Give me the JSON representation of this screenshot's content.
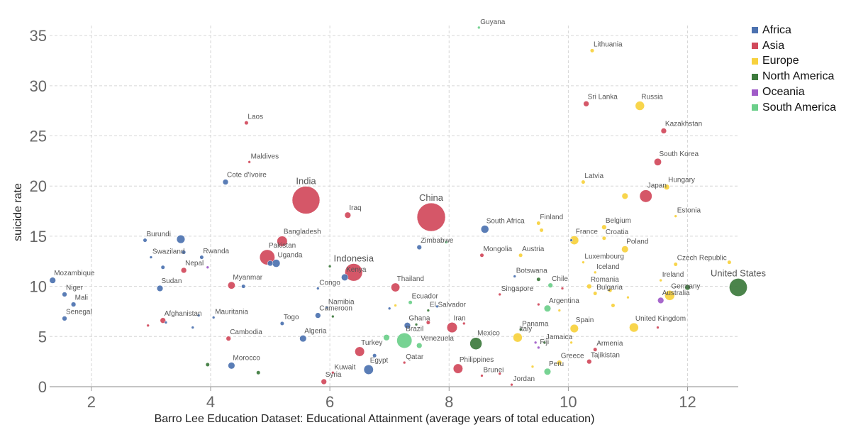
{
  "chart_data": {
    "type": "scatter",
    "title": "",
    "xlabel": "Barro Lee Education Dataset: Educational Attainment (average years of total education)",
    "ylabel": "suicide rate",
    "xlim": [
      1.3,
      12.85
    ],
    "ylim": [
      0,
      36
    ],
    "xticks": [
      "2",
      "4",
      "6",
      "8",
      "10",
      "12"
    ],
    "yticks": [
      "0",
      "5",
      "10",
      "15",
      "20",
      "25",
      "30",
      "35"
    ],
    "grid": true,
    "legend_position": "right",
    "size_encoding": "population",
    "regions": [
      {
        "name": "Africa",
        "color": "#4c72b0"
      },
      {
        "name": "Asia",
        "color": "#d1495b"
      },
      {
        "name": "Europe",
        "color": "#f7d13d"
      },
      {
        "name": "North America",
        "color": "#3c7a3c"
      },
      {
        "name": "Oceania",
        "color": "#a05bc8"
      },
      {
        "name": "South America",
        "color": "#6bcf8a"
      }
    ],
    "points": [
      {
        "label": "Guyana",
        "x": 8.5,
        "y": 35.8,
        "region": "South America",
        "size": 1
      },
      {
        "label": "Lithuania",
        "x": 10.4,
        "y": 33.5,
        "region": "Europe",
        "size": 2
      },
      {
        "label": "Sri Lanka",
        "x": 10.3,
        "y": 28.2,
        "region": "Asia",
        "size": 4
      },
      {
        "label": "Russia",
        "x": 11.2,
        "y": 28.0,
        "region": "Europe",
        "size": 11
      },
      {
        "label": "Laos",
        "x": 4.6,
        "y": 26.3,
        "region": "Asia",
        "size": 2
      },
      {
        "label": "Kazakhstan",
        "x": 11.6,
        "y": 25.5,
        "region": "Asia",
        "size": 4
      },
      {
        "label": "Maldives",
        "x": 4.65,
        "y": 22.4,
        "region": "Asia",
        "size": 1
      },
      {
        "label": "South Korea",
        "x": 11.5,
        "y": 22.4,
        "region": "Asia",
        "size": 7
      },
      {
        "label": "Cote d'Ivoire",
        "x": 4.25,
        "y": 20.4,
        "region": "Africa",
        "size": 4
      },
      {
        "label": "Latvia",
        "x": 10.25,
        "y": 20.4,
        "region": "Europe",
        "size": 2
      },
      {
        "label": "Hungary",
        "x": 11.65,
        "y": 19.9,
        "region": "Europe",
        "size": 4
      },
      {
        "label": "India",
        "x": 5.6,
        "y": 18.6,
        "region": "Asia",
        "size": 100
      },
      {
        "label": "Japan",
        "x": 11.3,
        "y": 19.0,
        "region": "Asia",
        "size": 20
      },
      {
        "label": "",
        "x": 10.95,
        "y": 19.0,
        "region": "Europe",
        "size": 5
      },
      {
        "label": "Iraq",
        "x": 6.3,
        "y": 17.1,
        "region": "Asia",
        "size": 5
      },
      {
        "label": "China",
        "x": 7.7,
        "y": 16.9,
        "region": "Asia",
        "size": 105
      },
      {
        "label": "Estonia",
        "x": 11.8,
        "y": 17.0,
        "region": "Europe",
        "size": 1
      },
      {
        "label": "Finland",
        "x": 9.5,
        "y": 16.3,
        "region": "Europe",
        "size": 2
      },
      {
        "label": "South Africa",
        "x": 8.6,
        "y": 15.7,
        "region": "Africa",
        "size": 8
      },
      {
        "label": "Belgium",
        "x": 10.6,
        "y": 15.9,
        "region": "Europe",
        "size": 3
      },
      {
        "label": "",
        "x": 9.55,
        "y": 15.6,
        "region": "Europe",
        "size": 2
      },
      {
        "label": "Burundi",
        "x": 2.9,
        "y": 14.6,
        "region": "Africa",
        "size": 2
      },
      {
        "label": "",
        "x": 3.5,
        "y": 14.7,
        "region": "Africa",
        "size": 9
      },
      {
        "label": "Bangladesh",
        "x": 5.2,
        "y": 14.5,
        "region": "Asia",
        "size": 14
      },
      {
        "label": "Croatia",
        "x": 10.6,
        "y": 14.8,
        "region": "Europe",
        "size": 2
      },
      {
        "label": "France",
        "x": 10.1,
        "y": 14.6,
        "region": "Europe",
        "size": 10
      },
      {
        "label": "",
        "x": 10.05,
        "y": 14.6,
        "region": "Africa",
        "size": 1
      },
      {
        "label": "Zimbabwe",
        "x": 7.5,
        "y": 13.9,
        "region": "Africa",
        "size": 3
      },
      {
        "label": "",
        "x": 7.95,
        "y": 14.4,
        "region": "South America",
        "size": 1
      },
      {
        "label": "Poland",
        "x": 10.95,
        "y": 13.7,
        "region": "Europe",
        "size": 6
      },
      {
        "label": "Swaziland",
        "x": 3.0,
        "y": 12.9,
        "region": "Africa",
        "size": 1
      },
      {
        "label": "",
        "x": 3.55,
        "y": 13.4,
        "region": "Africa",
        "size": 2
      },
      {
        "label": "Rwanda",
        "x": 3.85,
        "y": 12.9,
        "region": "Africa",
        "size": 2
      },
      {
        "label": "Pakistan",
        "x": 4.95,
        "y": 12.9,
        "region": "Asia",
        "size": 30
      },
      {
        "label": "Uganda",
        "x": 5.1,
        "y": 12.3,
        "region": "Africa",
        "size": 8
      },
      {
        "label": "",
        "x": 5.0,
        "y": 12.3,
        "region": "Africa",
        "size": 4
      },
      {
        "label": "Mongolia",
        "x": 8.55,
        "y": 13.1,
        "region": "Asia",
        "size": 2
      },
      {
        "label": "Austria",
        "x": 9.2,
        "y": 13.1,
        "region": "Europe",
        "size": 2
      },
      {
        "label": "Luxembourg",
        "x": 10.25,
        "y": 12.4,
        "region": "Europe",
        "size": 1
      },
      {
        "label": "Czech Republic",
        "x": 11.8,
        "y": 12.2,
        "region": "Europe",
        "size": 2
      },
      {
        "label": "",
        "x": 12.7,
        "y": 12.4,
        "region": "Europe",
        "size": 2
      },
      {
        "label": "Nepal",
        "x": 3.55,
        "y": 11.6,
        "region": "Asia",
        "size": 4
      },
      {
        "label": "",
        "x": 3.2,
        "y": 11.9,
        "region": "Africa",
        "size": 2
      },
      {
        "label": "",
        "x": 3.95,
        "y": 11.9,
        "region": "Oceania",
        "size": 1
      },
      {
        "label": "Indonesia",
        "x": 6.4,
        "y": 11.4,
        "region": "Asia",
        "size": 40
      },
      {
        "label": "",
        "x": 6.0,
        "y": 12.0,
        "region": "North America",
        "size": 1
      },
      {
        "label": "Kenya",
        "x": 6.25,
        "y": 10.9,
        "region": "Africa",
        "size": 6
      },
      {
        "label": "Botswana",
        "x": 9.1,
        "y": 11.0,
        "region": "Africa",
        "size": 1
      },
      {
        "label": "Iceland",
        "x": 10.45,
        "y": 11.4,
        "region": "Europe",
        "size": 1
      },
      {
        "label": "Mozambique",
        "x": 1.35,
        "y": 10.6,
        "region": "Africa",
        "size": 5
      },
      {
        "label": "Myanmar",
        "x": 4.35,
        "y": 10.1,
        "region": "Asia",
        "size": 7
      },
      {
        "label": "",
        "x": 4.55,
        "y": 10.0,
        "region": "Africa",
        "size": 2
      },
      {
        "label": "Congo",
        "x": 5.8,
        "y": 9.8,
        "region": "Africa",
        "size": 1
      },
      {
        "label": "Thailand",
        "x": 7.1,
        "y": 9.9,
        "region": "Asia",
        "size": 10
      },
      {
        "label": "Chile",
        "x": 9.7,
        "y": 10.1,
        "region": "South America",
        "size": 3
      },
      {
        "label": "",
        "x": 9.5,
        "y": 10.7,
        "region": "North America",
        "size": 2
      },
      {
        "label": "",
        "x": 9.9,
        "y": 9.8,
        "region": "Asia",
        "size": 1
      },
      {
        "label": "Romania",
        "x": 10.35,
        "y": 10.0,
        "region": "Europe",
        "size": 3
      },
      {
        "label": "Ireland",
        "x": 11.55,
        "y": 10.6,
        "region": "Europe",
        "size": 1
      },
      {
        "label": "United States",
        "x": 12.85,
        "y": 9.9,
        "region": "North America",
        "size": 42
      },
      {
        "label": "",
        "x": 12.0,
        "y": 9.9,
        "region": "North America",
        "size": 4
      },
      {
        "label": "Germany",
        "x": 11.7,
        "y": 9.1,
        "region": "Europe",
        "size": 13
      },
      {
        "label": "Sudan",
        "x": 3.15,
        "y": 9.8,
        "region": "Africa",
        "size": 5
      },
      {
        "label": "Niger",
        "x": 1.55,
        "y": 9.2,
        "region": "Africa",
        "size": 3
      },
      {
        "label": "Singapore",
        "x": 8.85,
        "y": 9.2,
        "region": "Asia",
        "size": 1
      },
      {
        "label": "Bulgaria",
        "x": 10.45,
        "y": 9.3,
        "region": "Europe",
        "size": 2
      },
      {
        "label": "",
        "x": 10.7,
        "y": 9.6,
        "region": "Europe",
        "size": 2
      },
      {
        "label": "Australia",
        "x": 11.55,
        "y": 8.6,
        "region": "Oceania",
        "size": 5
      },
      {
        "label": "",
        "x": 11.0,
        "y": 8.9,
        "region": "Europe",
        "size": 1
      },
      {
        "label": "Mali",
        "x": 1.7,
        "y": 8.2,
        "region": "Africa",
        "size": 3
      },
      {
        "label": "Ecuador",
        "x": 7.35,
        "y": 8.4,
        "region": "South America",
        "size": 2
      },
      {
        "label": "Namibia",
        "x": 5.95,
        "y": 7.9,
        "region": "Africa",
        "size": 1
      },
      {
        "label": "El Salvador",
        "x": 7.65,
        "y": 7.6,
        "region": "North America",
        "size": 1
      },
      {
        "label": "",
        "x": 7.8,
        "y": 8.0,
        "region": "Africa",
        "size": 1
      },
      {
        "label": "",
        "x": 7.1,
        "y": 8.1,
        "region": "Europe",
        "size": 1
      },
      {
        "label": "",
        "x": 7.0,
        "y": 7.8,
        "region": "Africa",
        "size": 1
      },
      {
        "label": "Argentina",
        "x": 9.65,
        "y": 7.8,
        "region": "South America",
        "size": 6
      },
      {
        "label": "",
        "x": 9.85,
        "y": 7.6,
        "region": "Europe",
        "size": 1
      },
      {
        "label": "",
        "x": 9.5,
        "y": 8.2,
        "region": "Asia",
        "size": 1
      },
      {
        "label": "",
        "x": 10.75,
        "y": 8.1,
        "region": "Europe",
        "size": 2
      },
      {
        "label": "Afghanistan",
        "x": 3.2,
        "y": 6.6,
        "region": "Asia",
        "size": 4
      },
      {
        "label": "",
        "x": 3.25,
        "y": 6.4,
        "region": "Africa",
        "size": 1
      },
      {
        "label": "",
        "x": 2.95,
        "y": 6.1,
        "region": "Asia",
        "size": 1
      },
      {
        "label": "",
        "x": 3.8,
        "y": 7.1,
        "region": "Africa",
        "size": 1
      },
      {
        "label": "",
        "x": 3.7,
        "y": 5.9,
        "region": "Africa",
        "size": 1
      },
      {
        "label": "Mauritania",
        "x": 4.05,
        "y": 6.9,
        "region": "Africa",
        "size": 1
      },
      {
        "label": "Senegal",
        "x": 1.55,
        "y": 6.8,
        "region": "Africa",
        "size": 3
      },
      {
        "label": "Cameroon",
        "x": 5.8,
        "y": 7.1,
        "region": "Africa",
        "size": 4
      },
      {
        "label": "",
        "x": 6.05,
        "y": 7.0,
        "region": "North America",
        "size": 1
      },
      {
        "label": "Togo",
        "x": 5.2,
        "y": 6.3,
        "region": "Africa",
        "size": 2
      },
      {
        "label": "Ghana",
        "x": 7.3,
        "y": 6.1,
        "region": "Africa",
        "size": 5
      },
      {
        "label": "",
        "x": 7.45,
        "y": 6.2,
        "region": "North America",
        "size": 1
      },
      {
        "label": "",
        "x": 7.65,
        "y": 6.4,
        "region": "Asia",
        "size": 2
      },
      {
        "label": "Iran",
        "x": 8.05,
        "y": 5.9,
        "region": "Asia",
        "size": 14
      },
      {
        "label": "",
        "x": 8.25,
        "y": 6.3,
        "region": "Asia",
        "size": 1
      },
      {
        "label": "Panama",
        "x": 9.2,
        "y": 5.7,
        "region": "North America",
        "size": 1
      },
      {
        "label": "Spain",
        "x": 10.1,
        "y": 5.8,
        "region": "Europe",
        "size": 9
      },
      {
        "label": "United Kingdom",
        "x": 11.1,
        "y": 5.9,
        "region": "Europe",
        "size": 11
      },
      {
        "label": "",
        "x": 11.5,
        "y": 5.9,
        "region": "Asia",
        "size": 1
      },
      {
        "label": "Cambodia",
        "x": 4.3,
        "y": 4.8,
        "region": "Asia",
        "size": 3
      },
      {
        "label": "Algeria",
        "x": 5.55,
        "y": 4.8,
        "region": "Africa",
        "size": 6
      },
      {
        "label": "Brazil",
        "x": 7.25,
        "y": 4.6,
        "region": "South America",
        "size": 30
      },
      {
        "label": "",
        "x": 6.95,
        "y": 4.9,
        "region": "South America",
        "size": 5
      },
      {
        "label": "Venezuela",
        "x": 7.5,
        "y": 4.1,
        "region": "South America",
        "size": 4
      },
      {
        "label": "Mexico",
        "x": 8.45,
        "y": 4.3,
        "region": "North America",
        "size": 19
      },
      {
        "label": "Italy",
        "x": 9.15,
        "y": 4.9,
        "region": "Europe",
        "size": 11
      },
      {
        "label": "Jamaica",
        "x": 9.6,
        "y": 4.4,
        "region": "North America",
        "size": 1
      },
      {
        "label": "",
        "x": 10.05,
        "y": 4.4,
        "region": "Europe",
        "size": 1
      },
      {
        "label": "Fiji",
        "x": 9.5,
        "y": 3.9,
        "region": "Oceania",
        "size": 1
      },
      {
        "label": "",
        "x": 9.45,
        "y": 4.4,
        "region": "Oceania",
        "size": 1
      },
      {
        "label": "Armenia",
        "x": 10.45,
        "y": 3.7,
        "region": "Asia",
        "size": 2
      },
      {
        "label": "Turkey",
        "x": 6.5,
        "y": 3.5,
        "region": "Asia",
        "size": 12
      },
      {
        "label": "",
        "x": 6.75,
        "y": 3.1,
        "region": "Africa",
        "size": 2
      },
      {
        "label": "Morocco",
        "x": 4.35,
        "y": 2.1,
        "region": "Africa",
        "size": 6
      },
      {
        "label": "",
        "x": 3.95,
        "y": 2.2,
        "region": "North America",
        "size": 2
      },
      {
        "label": "",
        "x": 4.8,
        "y": 1.4,
        "region": "North America",
        "size": 2
      },
      {
        "label": "Egypt",
        "x": 6.65,
        "y": 1.7,
        "region": "Africa",
        "size": 12
      },
      {
        "label": "Qatar",
        "x": 7.25,
        "y": 2.4,
        "region": "Asia",
        "size": 1
      },
      {
        "label": "Philippines",
        "x": 8.15,
        "y": 1.8,
        "region": "Asia",
        "size": 12
      },
      {
        "label": "Brunei",
        "x": 8.55,
        "y": 1.1,
        "region": "Asia",
        "size": 1
      },
      {
        "label": "",
        "x": 8.85,
        "y": 1.3,
        "region": "Asia",
        "size": 1
      },
      {
        "label": "Greece",
        "x": 9.85,
        "y": 2.4,
        "region": "Europe",
        "size": 3
      },
      {
        "label": "",
        "x": 9.4,
        "y": 2.0,
        "region": "Europe",
        "size": 1
      },
      {
        "label": "Peru",
        "x": 9.65,
        "y": 1.5,
        "region": "South America",
        "size": 6
      },
      {
        "label": "Tajikistan",
        "x": 10.35,
        "y": 2.5,
        "region": "Asia",
        "size": 3
      },
      {
        "label": "Kuwait",
        "x": 6.05,
        "y": 1.4,
        "region": "Asia",
        "size": 1
      },
      {
        "label": "Syria",
        "x": 5.9,
        "y": 0.5,
        "region": "Asia",
        "size": 4
      },
      {
        "label": "Jordan",
        "x": 9.05,
        "y": 0.2,
        "region": "Asia",
        "size": 1
      }
    ]
  }
}
